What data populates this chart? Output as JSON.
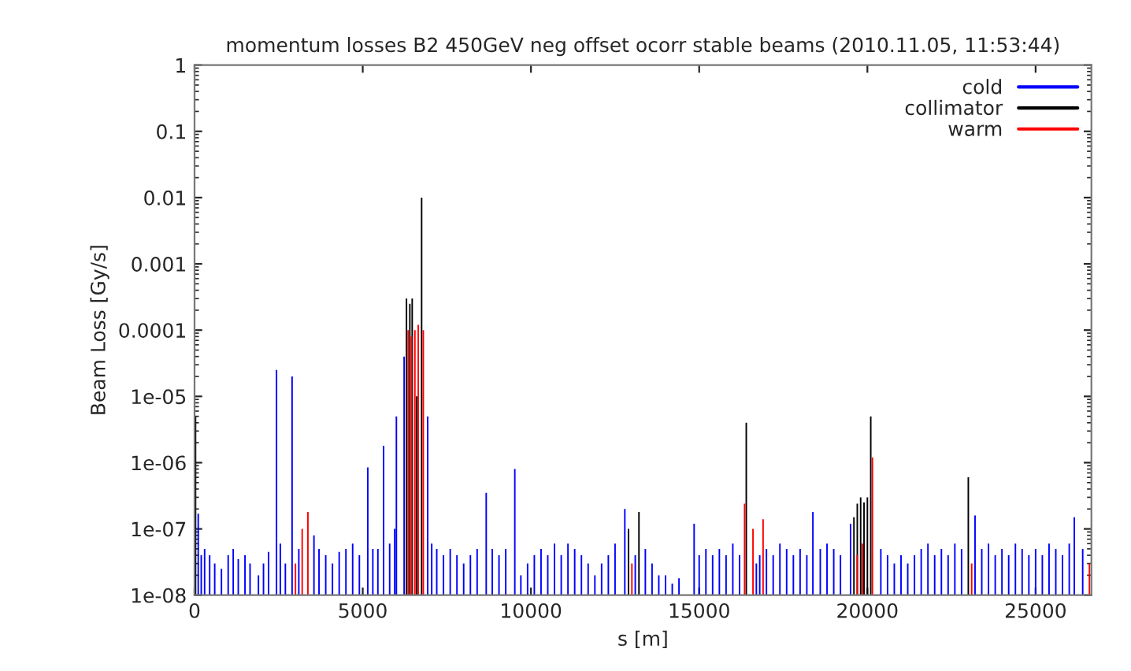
{
  "chart_data": {
    "type": "bar",
    "title": "momentum losses B2 450GeV neg offset ocorr stable beams (2010.11.05, 11:53:44)",
    "xlabel": "s [m]",
    "ylabel": "Beam Loss [Gy/s]",
    "log": "y",
    "grid": false,
    "legend": "top right",
    "xlim": [
      0,
      26659
    ],
    "xticks": [
      0,
      5000,
      10000,
      15000,
      20000,
      25000
    ],
    "ylim": [
      1e-08,
      1
    ],
    "yticks": [
      {
        "value": 1e-08,
        "label": "1e-08"
      },
      {
        "value": 1e-07,
        "label": "1e-07"
      },
      {
        "value": 1e-06,
        "label": "1e-06"
      },
      {
        "value": 1e-05,
        "label": "1e-05"
      },
      0.0001,
      0.001,
      0.01,
      0.1,
      1
    ],
    "series": [
      {
        "name": "cold",
        "color": "#0000ff",
        "x": [
          110,
          200,
          300,
          450,
          600,
          800,
          1000,
          1150,
          1300,
          1500,
          1650,
          1900,
          2050,
          2200,
          2437,
          2550,
          2700,
          2900,
          3100,
          3550,
          3700,
          3900,
          4100,
          4300,
          4500,
          4700,
          4900,
          5150,
          5300,
          5450,
          5620,
          5800,
          5950,
          6000,
          6230,
          6930,
          7050,
          7200,
          7400,
          7600,
          7800,
          8000,
          8200,
          8400,
          8670,
          8850,
          9050,
          9250,
          9520,
          9700,
          9900,
          10100,
          10300,
          10500,
          10700,
          10900,
          11100,
          11300,
          11500,
          11700,
          11900,
          12100,
          12300,
          12500,
          12790,
          13100,
          13400,
          13600,
          13800,
          14000,
          14200,
          14400,
          14850,
          15000,
          15200,
          15400,
          15600,
          15800,
          16000,
          16200,
          16700,
          16800,
          17000,
          17200,
          17400,
          17600,
          17800,
          18000,
          18200,
          18380,
          18600,
          18800,
          19000,
          19200,
          19500,
          20400,
          20600,
          20800,
          21000,
          21200,
          21400,
          21600,
          21800,
          22000,
          22200,
          22400,
          22600,
          22800,
          23200,
          23400,
          23600,
          23800,
          24000,
          24200,
          24400,
          24600,
          24800,
          25000,
          25200,
          25400,
          25600,
          25800,
          26000,
          26150,
          26400
        ],
        "values": [
          1.7e-07,
          4e-08,
          5e-08,
          4e-08,
          3e-08,
          2.5e-08,
          4e-08,
          5e-08,
          3.5e-08,
          4e-08,
          3e-08,
          2e-08,
          3e-08,
          4.5e-08,
          2.5e-05,
          6e-08,
          3e-08,
          2e-05,
          5e-08,
          8e-08,
          5e-08,
          4e-08,
          3e-08,
          4.5e-08,
          5e-08,
          6e-08,
          4e-08,
          8.5e-07,
          5e-08,
          5e-08,
          1.8e-06,
          6e-08,
          1e-07,
          5e-06,
          4e-05,
          5e-06,
          6e-08,
          5e-08,
          4e-08,
          5e-08,
          4e-08,
          3e-08,
          4e-08,
          5e-08,
          3.5e-07,
          5e-08,
          4e-08,
          5e-08,
          8e-07,
          2e-08,
          3e-08,
          4e-08,
          5e-08,
          4e-08,
          6e-08,
          4e-08,
          6e-08,
          5e-08,
          4e-08,
          3e-08,
          2e-08,
          3e-08,
          4e-08,
          6e-08,
          2e-07,
          4e-08,
          5e-08,
          3e-08,
          2e-08,
          2e-08,
          1.5e-08,
          1.8e-08,
          1.2e-07,
          4e-08,
          5e-08,
          4e-08,
          5e-08,
          4e-08,
          6e-08,
          4e-08,
          3e-08,
          4e-08,
          5e-08,
          4e-08,
          6e-08,
          5e-08,
          4e-08,
          5e-08,
          4e-08,
          1.8e-07,
          5e-08,
          6e-08,
          5e-08,
          4e-08,
          1.2e-07,
          5e-08,
          4e-08,
          3e-08,
          4e-08,
          3e-08,
          4e-08,
          5e-08,
          6e-08,
          4e-08,
          5e-08,
          4e-08,
          6e-08,
          5e-08,
          1.6e-07,
          5e-08,
          6e-08,
          4e-08,
          5e-08,
          4e-08,
          6e-08,
          5e-08,
          4e-08,
          5e-08,
          4e-08,
          6e-08,
          5e-08,
          4e-08,
          6e-08,
          1.5e-07,
          5e-08
        ]
      },
      {
        "name": "collimator",
        "color": "#000000",
        "x": [
          30,
          6300,
          6400,
          6470,
          6600,
          6750,
          12900,
          13210,
          16400,
          19600,
          19700,
          19800,
          19900,
          20000,
          20100,
          23000
        ],
        "values": [
          5e-06,
          0.0003,
          0.00025,
          0.0003,
          1e-05,
          0.01,
          1e-07,
          1.8e-07,
          4e-06,
          1.5e-07,
          2.4e-07,
          3e-07,
          2.5e-07,
          3e-07,
          5e-06,
          6e-07
        ]
      },
      {
        "name": "warm",
        "color": "#ff0000",
        "x": [
          3000,
          3200,
          3370,
          6350,
          6450,
          6550,
          6650,
          6800,
          13000,
          16350,
          16600,
          16900,
          19700,
          19850,
          20150,
          23100,
          26600
        ],
        "values": [
          3e-08,
          1e-07,
          1.8e-07,
          0.0001,
          8e-05,
          0.0001,
          0.00012,
          0.0001,
          3e-08,
          2.4e-07,
          1e-07,
          1.4e-07,
          4e-08,
          6e-08,
          1.2e-06,
          3e-08,
          3e-08
        ]
      }
    ]
  }
}
